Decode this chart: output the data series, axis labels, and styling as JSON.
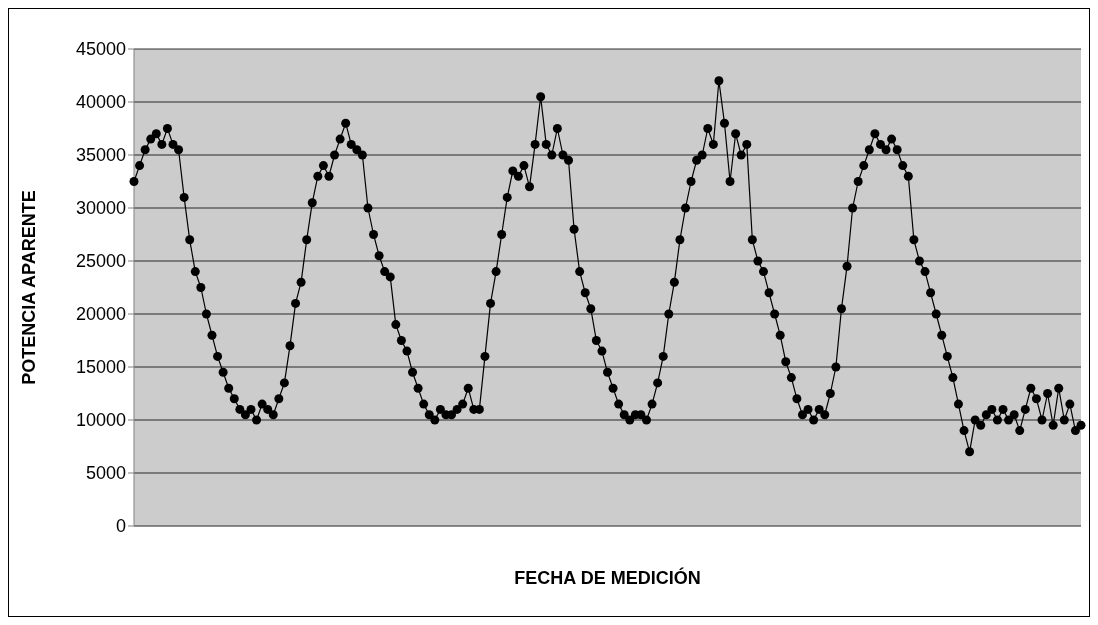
{
  "chart_data": {
    "type": "line",
    "xlabel": "FECHA DE MEDICIÓN",
    "ylabel": "POTENCIA APARENTE",
    "categories": [
      null,
      null,
      null,
      null,
      null,
      null,
      null,
      null,
      null,
      null,
      null,
      null,
      null,
      null,
      null,
      null,
      null,
      null,
      null,
      null,
      null,
      null,
      null,
      null,
      null,
      null,
      null,
      null,
      null,
      null,
      null,
      null,
      null,
      null,
      null,
      null,
      null,
      null,
      null,
      null,
      null,
      null,
      null,
      null,
      null,
      null,
      null,
      null,
      null,
      null,
      null,
      null,
      null,
      null,
      null,
      null,
      null,
      null,
      null,
      null,
      null,
      null,
      null,
      null,
      null,
      null,
      null,
      null,
      null,
      null,
      null,
      null,
      null,
      null,
      null,
      null,
      null,
      null,
      null,
      null,
      null,
      null,
      null,
      null,
      null,
      null,
      null,
      null,
      null,
      null,
      null,
      null,
      null,
      null,
      null,
      null,
      null,
      null,
      null,
      null,
      null,
      null,
      null,
      null,
      null,
      null,
      null,
      null,
      null,
      null,
      null,
      null,
      null,
      null,
      null,
      null,
      null,
      null,
      null,
      null,
      null,
      null,
      null,
      null,
      null,
      null,
      null,
      null,
      null,
      null,
      null,
      null,
      null,
      null,
      null,
      null,
      null,
      null,
      null,
      null,
      null,
      null,
      null,
      null,
      null,
      null,
      null,
      null,
      null,
      null,
      null,
      null,
      null,
      null,
      null,
      null,
      null,
      null,
      null,
      null,
      null,
      null,
      null,
      null,
      null,
      null,
      null,
      null,
      null,
      null,
      null
    ],
    "series": [
      {
        "color": "#000000",
        "values": [
          32500,
          34000,
          35500,
          36500,
          37000,
          36000,
          37500,
          36000,
          35500,
          31000,
          27000,
          24000,
          22500,
          20000,
          18000,
          16000,
          14500,
          13000,
          12000,
          11000,
          10500,
          11000,
          10000,
          11500,
          11000,
          10500,
          12000,
          13500,
          17000,
          21000,
          23000,
          27000,
          30500,
          33000,
          34000,
          33000,
          35000,
          36500,
          38000,
          36000,
          35500,
          35000,
          30000,
          27500,
          25500,
          24000,
          23500,
          19000,
          17500,
          16500,
          14500,
          13000,
          11500,
          10500,
          10000,
          11000,
          10500,
          10500,
          11000,
          11500,
          13000,
          11000,
          11000,
          16000,
          21000,
          24000,
          27500,
          31000,
          33500,
          33000,
          34000,
          32000,
          36000,
          40500,
          36000,
          35000,
          37500,
          35000,
          34500,
          28000,
          24000,
          22000,
          20500,
          17500,
          16500,
          14500,
          13000,
          11500,
          10500,
          10000,
          10500,
          10500,
          10000,
          11500,
          13500,
          16000,
          20000,
          23000,
          27000,
          30000,
          32500,
          34500,
          35000,
          37500,
          36000,
          42000,
          38000,
          32500,
          37000,
          35000,
          36000,
          27000,
          25000,
          24000,
          22000,
          20000,
          18000,
          15500,
          14000,
          12000,
          10500,
          11000,
          10000,
          11000,
          10500,
          12500,
          15000,
          20500,
          24500,
          30000,
          32500,
          34000,
          35500,
          37000,
          36000,
          35500,
          36500,
          35500,
          34000,
          33000,
          27000,
          25000,
          24000,
          22000,
          20000,
          18000,
          16000,
          14000,
          11500,
          9000,
          7000,
          10000,
          9500,
          10500,
          11000,
          10000,
          11000,
          10000,
          10500,
          9000,
          11000,
          13000,
          12000,
          10000,
          12500,
          9500,
          13000,
          10000,
          11500,
          9000,
          9500
        ]
      }
    ],
    "ylim": [
      0,
      45000
    ],
    "yticks": [
      0,
      5000,
      10000,
      15000,
      20000,
      25000,
      30000,
      35000,
      40000,
      45000
    ],
    "grid": "y",
    "legend": false,
    "marker": "circle",
    "line_style": "solid"
  }
}
